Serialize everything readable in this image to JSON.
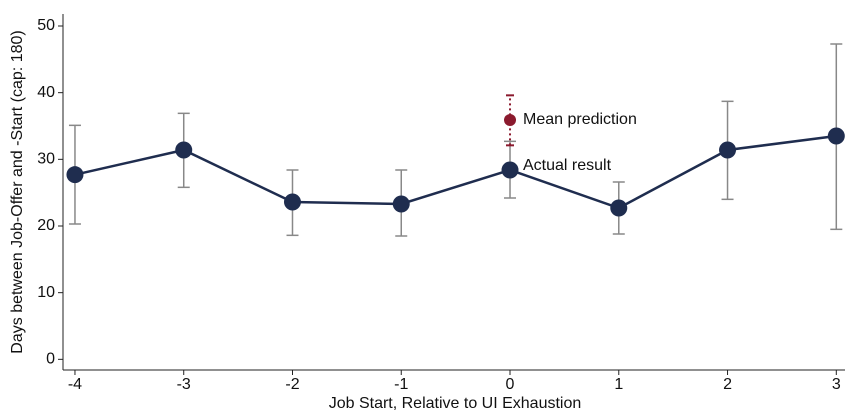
{
  "chart_data": {
    "type": "line",
    "x_label": "Job Start, Relative to UI Exhaustion",
    "y_label": "Days between Job-Offer and -Start (cap: 180)",
    "xlim": [
      -4.11,
      3.08
    ],
    "xticks": [
      -4,
      -3,
      -2,
      -1,
      0,
      1,
      2,
      3
    ],
    "ylim": [
      -1.6,
      51.8
    ],
    "yticks": [
      0,
      10,
      20,
      30,
      40,
      50
    ],
    "series": [
      {
        "name": "Actual result",
        "color": "#1f2d4f",
        "errorbar_color": "#888888",
        "x": [
          -4,
          -3,
          -2,
          -1,
          0,
          1,
          2,
          3
        ],
        "values": [
          27.7,
          31.4,
          23.6,
          23.3,
          28.4,
          22.7,
          31.4,
          33.5
        ],
        "lower": [
          20.3,
          25.8,
          18.6,
          18.5,
          24.2,
          18.8,
          24.0,
          19.5
        ],
        "upper": [
          35.1,
          36.9,
          28.4,
          28.4,
          32.7,
          26.6,
          38.7,
          47.3
        ]
      },
      {
        "name": "Mean prediction",
        "color": "#8b1a2e",
        "errorbar_color": "#8b1a2e",
        "x": [
          0
        ],
        "values": [
          35.9
        ],
        "lower": [
          32.1
        ],
        "upper": [
          39.6
        ]
      }
    ]
  }
}
